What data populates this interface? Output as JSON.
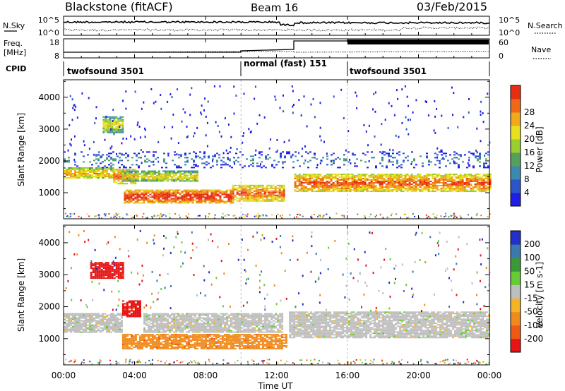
{
  "header": {
    "station": "Blackstone (fitACF)",
    "beam": "Beam 16",
    "date": "03/Feb/2015"
  },
  "noise_panel": {
    "left_label": "N.Sky",
    "right_label": "N.Search",
    "tick_top": "10^5",
    "tick_bottom": "10^0"
  },
  "freq_panel": {
    "left_label_line1": "Freq.",
    "left_label_line2": "[MHz]",
    "right_label": "Nave",
    "left_tick_top": "18",
    "left_tick_bottom": "8",
    "right_tick_top": "60",
    "right_tick_bottom": "0"
  },
  "cpid": {
    "label": "CPID",
    "segments": [
      {
        "start_hour": 0,
        "end_hour": 10,
        "text": "twofsound 3501"
      },
      {
        "start_hour": 10,
        "end_hour": 16,
        "text": "normal (fast) 151"
      },
      {
        "start_hour": 16,
        "end_hour": 24,
        "text": "twofsound 3501"
      }
    ]
  },
  "x_axis": {
    "title": "Time UT",
    "tick_labels": [
      "00:00",
      "04:00",
      "08:00",
      "12:00",
      "16:00",
      "20:00",
      "00:00"
    ],
    "tick_hours": [
      0,
      4,
      8,
      12,
      16,
      20,
      24
    ]
  },
  "chart_data": [
    {
      "type": "heatmap",
      "title": "Power",
      "x_range_hours": [
        0,
        24
      ],
      "ylabel": "Slant Range [km]",
      "ylim": [
        180,
        4550
      ],
      "yticks": [
        1000,
        2000,
        3000,
        4000
      ],
      "colorbar": {
        "label": "Power [dB]",
        "tick_labels": [
          "4",
          "8",
          "12",
          "16",
          "20",
          "24",
          "28"
        ],
        "colors": [
          "#1e1ee6",
          "#2b56c8",
          "#3b8ab0",
          "#57a05c",
          "#9ccd2e",
          "#e6e01e",
          "#f0a81c",
          "#ee6a1a",
          "#e82e14"
        ]
      },
      "bands": [
        {
          "start_hour": 0.0,
          "end_hour": 2.8,
          "range_lo": 1450,
          "range_hi": 1800,
          "level": 5
        },
        {
          "start_hour": 2.8,
          "end_hour": 4.0,
          "range_lo": 1300,
          "range_hi": 1750,
          "level": 6
        },
        {
          "start_hour": 3.3,
          "end_hour": 7.5,
          "range_lo": 1350,
          "range_hi": 1700,
          "level": 4
        },
        {
          "start_hour": 3.4,
          "end_hour": 9.5,
          "range_lo": 700,
          "range_hi": 1100,
          "level": 7
        },
        {
          "start_hour": 9.5,
          "end_hour": 12.4,
          "range_lo": 750,
          "range_hi": 1250,
          "level": 6
        },
        {
          "start_hour": 13.0,
          "end_hour": 24.0,
          "range_lo": 1050,
          "range_hi": 1600,
          "level": 6
        },
        {
          "start_hour": 2.2,
          "end_hour": 3.3,
          "range_lo": 2900,
          "range_hi": 3400,
          "level": 4
        },
        {
          "start_hour": 0.0,
          "end_hour": 24.0,
          "range_lo": 1800,
          "range_hi": 2300,
          "level": 1
        }
      ]
    },
    {
      "type": "heatmap",
      "title": "Velocity",
      "x_range_hours": [
        0,
        24
      ],
      "ylabel": "Slant Range [km]",
      "ylim": [
        180,
        4550
      ],
      "yticks": [
        1000,
        2000,
        3000,
        4000
      ],
      "colorbar": {
        "label": "Velocity [m s-1]",
        "tick_labels": [
          "200",
          "100",
          "50",
          "15",
          "-15",
          "-50",
          "-100",
          "-200"
        ],
        "colors": [
          "#2030c8",
          "#3d78b0",
          "#3a9a3a",
          "#66cc33",
          "#bebebe",
          "#f5b428",
          "#f08a1e",
          "#ef5a14",
          "#e61414"
        ]
      },
      "bands": [
        {
          "start_hour": 0.0,
          "end_hour": 3.3,
          "range_lo": 1200,
          "range_hi": 1800,
          "level": "grey"
        },
        {
          "start_hour": 3.3,
          "end_hour": 12.5,
          "range_lo": 700,
          "range_hi": 1150,
          "level": "orange"
        },
        {
          "start_hour": 4.5,
          "end_hour": 12.3,
          "range_lo": 1200,
          "range_hi": 1800,
          "level": "grey"
        },
        {
          "start_hour": 12.7,
          "end_hour": 24.0,
          "range_lo": 1050,
          "range_hi": 1850,
          "level": "grey"
        },
        {
          "start_hour": 1.5,
          "end_hour": 3.3,
          "range_lo": 2900,
          "range_hi": 3400,
          "level": "red"
        },
        {
          "start_hour": 3.3,
          "end_hour": 4.3,
          "range_lo": 1700,
          "range_hi": 2200,
          "level": "red"
        }
      ]
    }
  ]
}
